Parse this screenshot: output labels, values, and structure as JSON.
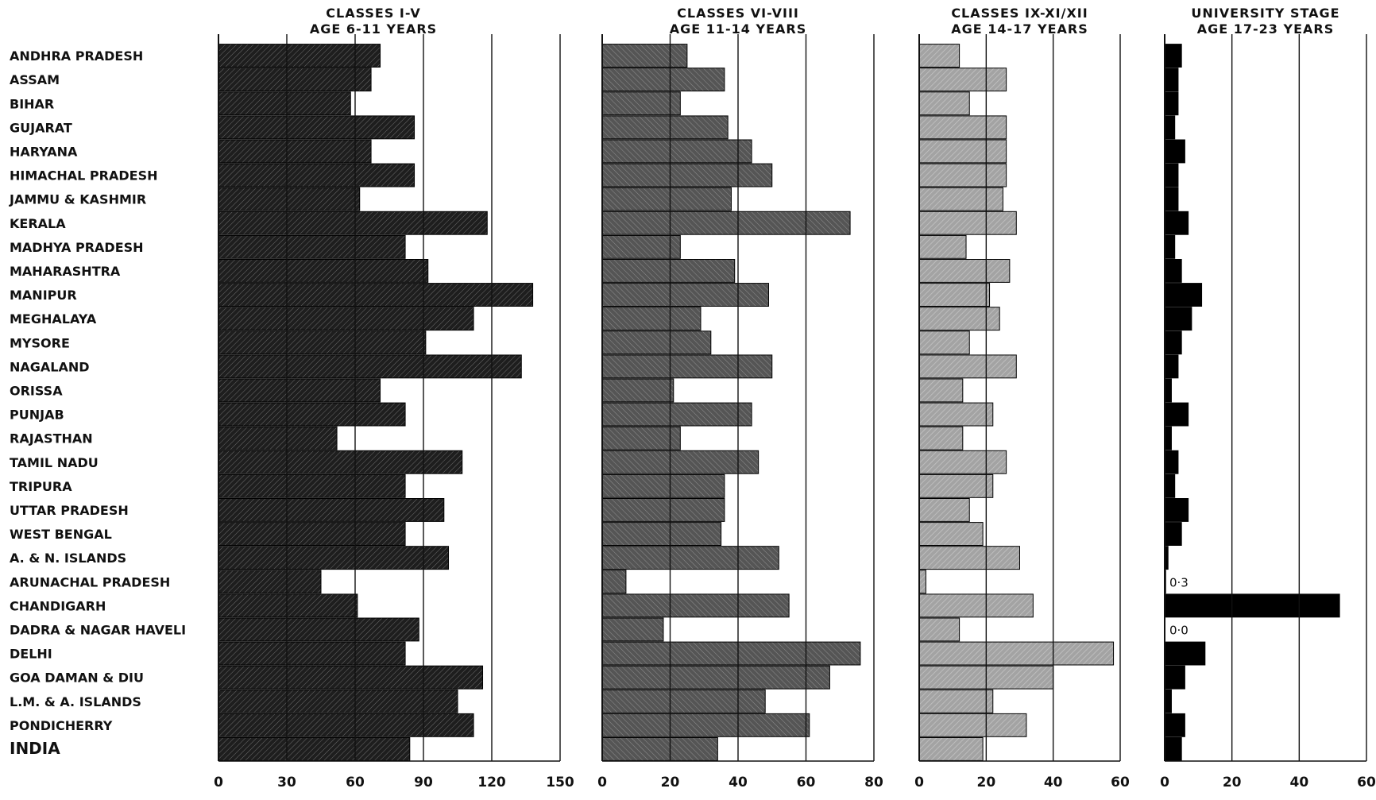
{
  "chart_data": {
    "type": "bar",
    "orientation": "horizontal",
    "categories": [
      "ANDHRA PRADESH",
      "ASSAM",
      "BIHAR",
      "GUJARAT",
      "HARYANA",
      "HIMACHAL PRADESH",
      "JAMMU & KASHMIR",
      "KERALA",
      "MADHYA PRADESH",
      "MAHARASHTRA",
      "MANIPUR",
      "MEGHALAYA",
      "MYSORE",
      "NAGALAND",
      "ORISSA",
      "PUNJAB",
      "RAJASTHAN",
      "TAMIL NADU",
      "TRIPURA",
      "UTTAR PRADESH",
      "WEST BENGAL",
      "A. & N. ISLANDS",
      "ARUNACHAL PRADESH",
      "CHANDIGARH",
      "DADRA & NAGAR HAVELI",
      "DELHI",
      "GOA DAMAN & DIU",
      "L.M. & A. ISLANDS",
      "PONDICHERRY",
      "INDIA"
    ],
    "panels": [
      {
        "title_line1": "CLASSES I-V",
        "title_line2": "AGE 6-11 YEARS",
        "xlim": [
          0,
          150
        ],
        "ticks": [
          0,
          30,
          60,
          90,
          120,
          150
        ],
        "tick_labels": [
          "0",
          "30",
          "60",
          "90",
          "120",
          "150"
        ],
        "fill": "#1e1e1e",
        "values": [
          71,
          67,
          58,
          86,
          67,
          86,
          62,
          118,
          82,
          92,
          138,
          112,
          91,
          133,
          71,
          82,
          52,
          107,
          82,
          99,
          82,
          101,
          45,
          61,
          88,
          82,
          116,
          105,
          112,
          84
        ]
      },
      {
        "title_line1": "CLASSES VI-VIII",
        "title_line2": "AGE 11-14 YEARS",
        "xlim": [
          0,
          80
        ],
        "ticks": [
          0,
          20,
          40,
          60,
          80
        ],
        "tick_labels": [
          "0",
          "20",
          "40",
          "60",
          "80"
        ],
        "fill": "#555555",
        "values": [
          25,
          36,
          23,
          37,
          44,
          50,
          38,
          73,
          23,
          39,
          49,
          29,
          32,
          50,
          21,
          44,
          23,
          46,
          36,
          36,
          35,
          52,
          7,
          55,
          18,
          76,
          67,
          48,
          61,
          34
        ]
      },
      {
        "title_line1": "CLASSES IX-XI/XII",
        "title_line2": "AGE 14-17 YEARS",
        "xlim": [
          0,
          60
        ],
        "ticks": [
          0,
          20,
          40,
          60
        ],
        "tick_labels": [
          "0",
          "20",
          "40",
          "60"
        ],
        "fill": "#a3a3a3",
        "values": [
          12,
          26,
          15,
          26,
          26,
          26,
          25,
          29,
          14,
          27,
          21,
          24,
          15,
          29,
          13,
          22,
          13,
          26,
          22,
          15,
          19,
          30,
          2,
          34,
          12,
          58,
          40,
          22,
          32,
          19
        ]
      },
      {
        "title_line1": "UNIVERSITY STAGE",
        "title_line2": "AGE 17-23 YEARS",
        "xlim": [
          0,
          60
        ],
        "ticks": [
          0,
          20,
          40,
          60
        ],
        "tick_labels": [
          "0",
          "20",
          "40",
          "60"
        ],
        "fill": "#000000",
        "values": [
          5,
          4,
          4,
          3,
          6,
          4,
          4,
          7,
          3,
          5,
          11,
          8,
          5,
          4,
          2,
          7,
          2,
          4,
          3,
          7,
          5,
          1,
          0.3,
          52,
          0.0,
          12,
          6,
          2,
          6,
          5
        ],
        "annotations": [
          {
            "category": "ARUNACHAL PRADESH",
            "text": "0·3"
          },
          {
            "category": "DADRA & NAGAR HAVELI",
            "text": "0·0"
          }
        ]
      }
    ],
    "grid": true,
    "legend": "none"
  }
}
